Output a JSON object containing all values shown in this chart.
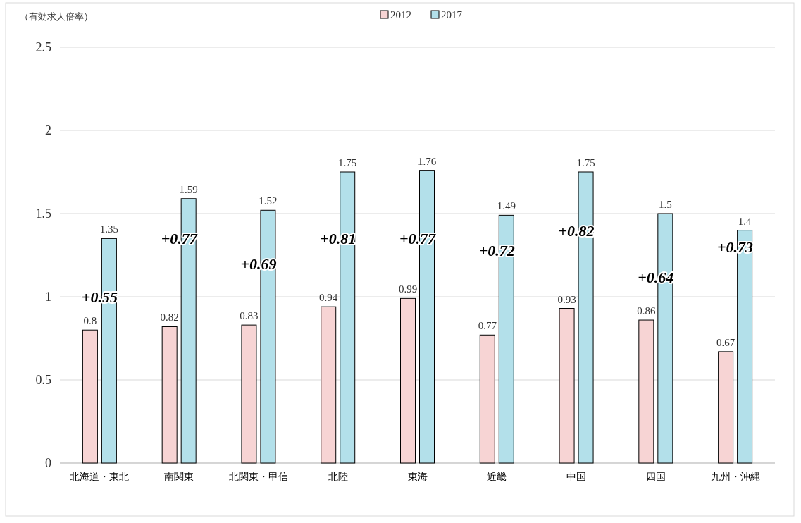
{
  "chart_data": {
    "type": "bar",
    "ylabel": "（有効求人倍率）",
    "categories": [
      "北海道・東北",
      "南関東",
      "北関東・甲信",
      "北陸",
      "東海",
      "近畿",
      "中国",
      "四国",
      "九州・沖縄"
    ],
    "series": [
      {
        "name": "2012",
        "color": "#f7d4d4",
        "values": [
          0.8,
          0.82,
          0.83,
          0.94,
          0.99,
          0.77,
          0.93,
          0.86,
          0.67
        ]
      },
      {
        "name": "2017",
        "color": "#b3e0ea",
        "values": [
          1.35,
          1.59,
          1.52,
          1.75,
          1.76,
          1.49,
          1.75,
          1.5,
          1.4
        ]
      }
    ],
    "ylim": [
      0,
      2.5
    ],
    "yticks": [
      0,
      0.5,
      1,
      1.5,
      2,
      2.5
    ],
    "grid": "y",
    "legend": "top",
    "data_labels": true,
    "annotations": [
      {
        "text": "+0.55",
        "x": "北海道・東北",
        "y": 1.0
      },
      {
        "text": "+0.77",
        "x": "南関東",
        "y": 1.35
      },
      {
        "text": "+0.69",
        "x": "北関東・甲信",
        "y": 1.2
      },
      {
        "text": "+0.81",
        "x": "北陸",
        "y": 1.35
      },
      {
        "text": "+0.77",
        "x": "東海",
        "y": 1.35
      },
      {
        "text": "+0.72",
        "x": "近畿",
        "y": 1.28
      },
      {
        "text": "+0.82",
        "x": "中国",
        "y": 1.4
      },
      {
        "text": "+0.64",
        "x": "四国",
        "y": 1.12
      },
      {
        "text": "+0.73",
        "x": "九州・沖縄",
        "y": 1.3
      }
    ]
  }
}
